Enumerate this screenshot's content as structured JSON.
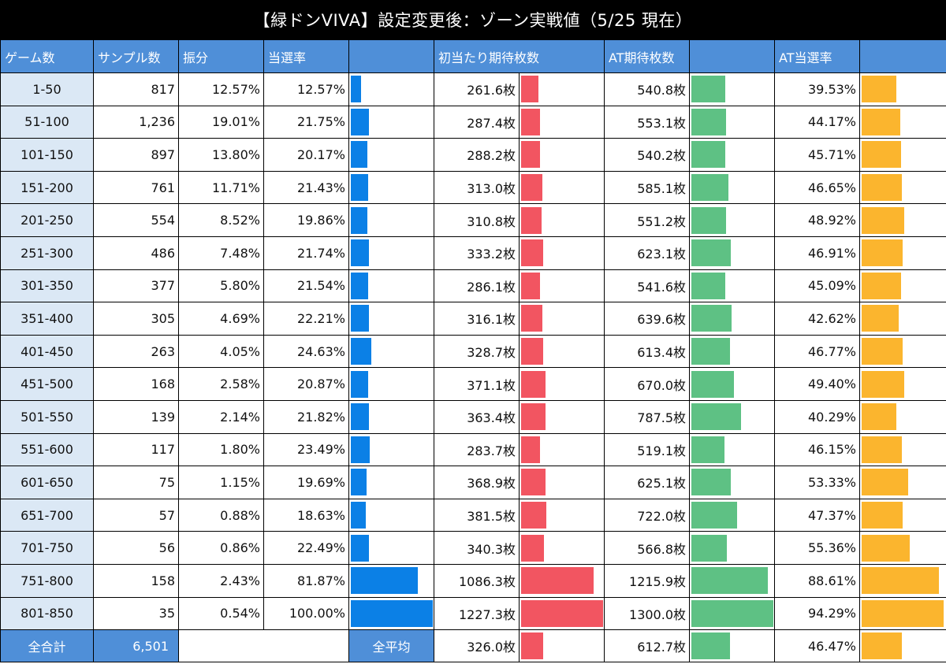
{
  "title": "【緑ドンVIVA】設定変更後：ゾーン実戦値（5/25 現在）",
  "headers": {
    "game": "ゲーム数",
    "samples": "サンプル数",
    "share": "振分",
    "hit_rate": "当選率",
    "first_hit_medals": "初当たり期待枚数",
    "at_medals": "AT期待枚数",
    "at_rate": "AT当選率"
  },
  "colors": {
    "header_bg": "#4f8fd8",
    "zone_bg": "#dbe8f5",
    "hit_rate_bar": "#0b80e6",
    "first_hit_bar": "#f25561",
    "at_medals_bar": "#5ec184",
    "at_rate_bar": "#fbb52e"
  },
  "chart_data": {
    "type": "table",
    "title": "【緑ドンVIVA】設定変更後：ゾーン実戦値（5/25 現在）",
    "columns": [
      "ゲーム数",
      "サンプル数",
      "振分",
      "当選率",
      "初当たり期待枚数",
      "AT期待枚数",
      "AT当選率"
    ],
    "bar_scale": {
      "hit_rate_max": 100,
      "first_hit_max": 1227.3,
      "at_medals_max": 1300.0,
      "at_rate_max": 94.29
    },
    "rows": [
      {
        "zone": "1-50",
        "samples": "817",
        "share": "12.57%",
        "hit_rate": "12.57%",
        "first_hit": "261.6枚",
        "at_medals": "540.8枚",
        "at_rate": "39.53%",
        "v": [
          12.57,
          261.6,
          540.8,
          39.53
        ]
      },
      {
        "zone": "51-100",
        "samples": "1,236",
        "share": "19.01%",
        "hit_rate": "21.75%",
        "first_hit": "287.4枚",
        "at_medals": "553.1枚",
        "at_rate": "44.17%",
        "v": [
          21.75,
          287.4,
          553.1,
          44.17
        ]
      },
      {
        "zone": "101-150",
        "samples": "897",
        "share": "13.80%",
        "hit_rate": "20.17%",
        "first_hit": "288.2枚",
        "at_medals": "540.2枚",
        "at_rate": "45.71%",
        "v": [
          20.17,
          288.2,
          540.2,
          45.71
        ]
      },
      {
        "zone": "151-200",
        "samples": "761",
        "share": "11.71%",
        "hit_rate": "21.43%",
        "first_hit": "313.0枚",
        "at_medals": "585.1枚",
        "at_rate": "46.65%",
        "v": [
          21.43,
          313.0,
          585.1,
          46.65
        ]
      },
      {
        "zone": "201-250",
        "samples": "554",
        "share": "8.52%",
        "hit_rate": "19.86%",
        "first_hit": "310.8枚",
        "at_medals": "551.2枚",
        "at_rate": "48.92%",
        "v": [
          19.86,
          310.8,
          551.2,
          48.92
        ]
      },
      {
        "zone": "251-300",
        "samples": "486",
        "share": "7.48%",
        "hit_rate": "21.74%",
        "first_hit": "333.2枚",
        "at_medals": "623.1枚",
        "at_rate": "46.91%",
        "v": [
          21.74,
          333.2,
          623.1,
          46.91
        ]
      },
      {
        "zone": "301-350",
        "samples": "377",
        "share": "5.80%",
        "hit_rate": "21.54%",
        "first_hit": "286.1枚",
        "at_medals": "541.6枚",
        "at_rate": "45.09%",
        "v": [
          21.54,
          286.1,
          541.6,
          45.09
        ]
      },
      {
        "zone": "351-400",
        "samples": "305",
        "share": "4.69%",
        "hit_rate": "22.21%",
        "first_hit": "316.1枚",
        "at_medals": "639.6枚",
        "at_rate": "42.62%",
        "v": [
          22.21,
          316.1,
          639.6,
          42.62
        ]
      },
      {
        "zone": "401-450",
        "samples": "263",
        "share": "4.05%",
        "hit_rate": "24.63%",
        "first_hit": "328.7枚",
        "at_medals": "613.4枚",
        "at_rate": "46.77%",
        "v": [
          24.63,
          328.7,
          613.4,
          46.77
        ]
      },
      {
        "zone": "451-500",
        "samples": "168",
        "share": "2.58%",
        "hit_rate": "20.87%",
        "first_hit": "371.1枚",
        "at_medals": "670.0枚",
        "at_rate": "49.40%",
        "v": [
          20.87,
          371.1,
          670.0,
          49.4
        ]
      },
      {
        "zone": "501-550",
        "samples": "139",
        "share": "2.14%",
        "hit_rate": "21.82%",
        "first_hit": "363.4枚",
        "at_medals": "787.5枚",
        "at_rate": "40.29%",
        "v": [
          21.82,
          363.4,
          787.5,
          40.29
        ]
      },
      {
        "zone": "551-600",
        "samples": "117",
        "share": "1.80%",
        "hit_rate": "23.49%",
        "first_hit": "283.7枚",
        "at_medals": "519.1枚",
        "at_rate": "46.15%",
        "v": [
          23.49,
          283.7,
          519.1,
          46.15
        ]
      },
      {
        "zone": "601-650",
        "samples": "75",
        "share": "1.15%",
        "hit_rate": "19.69%",
        "first_hit": "368.9枚",
        "at_medals": "625.1枚",
        "at_rate": "53.33%",
        "v": [
          19.69,
          368.9,
          625.1,
          53.33
        ]
      },
      {
        "zone": "651-700",
        "samples": "57",
        "share": "0.88%",
        "hit_rate": "18.63%",
        "first_hit": "381.5枚",
        "at_medals": "722.0枚",
        "at_rate": "47.37%",
        "v": [
          18.63,
          381.5,
          722.0,
          47.37
        ]
      },
      {
        "zone": "701-750",
        "samples": "56",
        "share": "0.86%",
        "hit_rate": "22.49%",
        "first_hit": "340.3枚",
        "at_medals": "566.8枚",
        "at_rate": "55.36%",
        "v": [
          22.49,
          340.3,
          566.8,
          55.36
        ]
      },
      {
        "zone": "751-800",
        "samples": "158",
        "share": "2.43%",
        "hit_rate": "81.87%",
        "first_hit": "1086.3枚",
        "at_medals": "1215.9枚",
        "at_rate": "88.61%",
        "v": [
          81.87,
          1086.3,
          1215.9,
          88.61
        ]
      },
      {
        "zone": "801-850",
        "samples": "35",
        "share": "0.54%",
        "hit_rate": "100.00%",
        "first_hit": "1227.3枚",
        "at_medals": "1300.0枚",
        "at_rate": "94.29%",
        "v": [
          100.0,
          1227.3,
          1300.0,
          94.29
        ]
      }
    ],
    "totals": {
      "total_label": "全合計",
      "total_samples": "6,501",
      "average_label": "全平均",
      "first_hit": "326.0枚",
      "at_medals": "612.7枚",
      "at_rate": "46.47%",
      "v": [
        326.0,
        612.7,
        46.47
      ]
    }
  }
}
